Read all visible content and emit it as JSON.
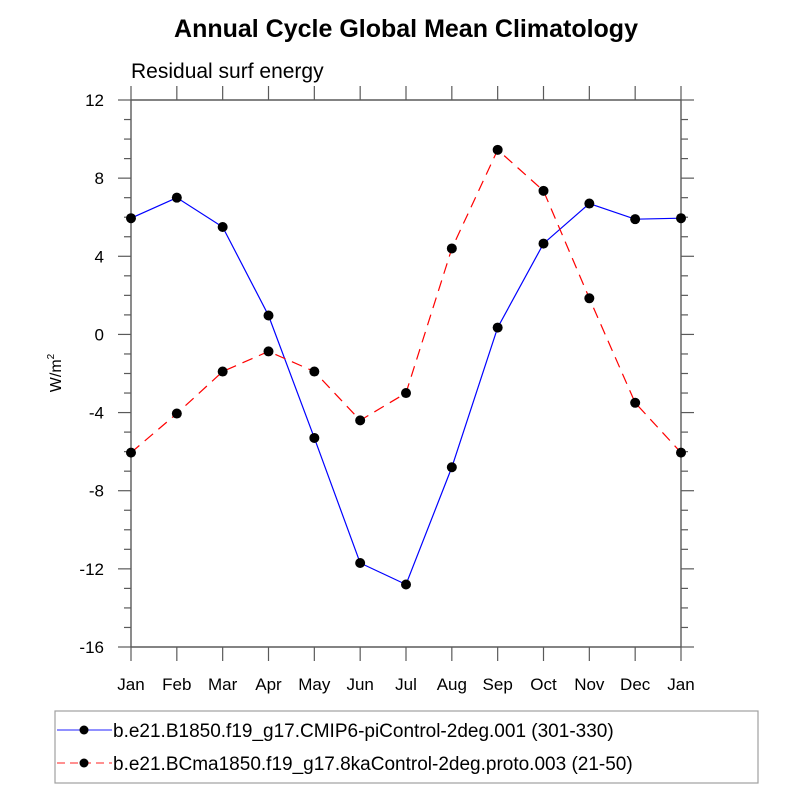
{
  "chart_data": {
    "type": "line",
    "title": "Annual Cycle Global Mean Climatology",
    "subtitle": "Residual surf energy",
    "xlabel": "",
    "ylabel": "W/m",
    "ylabel_superscript": "2",
    "categories": [
      "Jan",
      "Feb",
      "Mar",
      "Apr",
      "May",
      "Jun",
      "Jul",
      "Aug",
      "Sep",
      "Oct",
      "Nov",
      "Dec",
      "Jan"
    ],
    "ylim": [
      -16,
      12
    ],
    "yticks": [
      -16,
      -12,
      -8,
      -4,
      0,
      4,
      8,
      12
    ],
    "ytick_labels": [
      "-16",
      "-12",
      "-8",
      "-4",
      "0",
      "4",
      "8",
      "12"
    ],
    "grid": false,
    "legend_position": "bottom",
    "series": [
      {
        "name": "b.e21.B1850.f19_g17.CMIP6-piControl-2deg.001 (301-330)",
        "color": "#0000ff",
        "dash": "solid",
        "marker": "filled-circle",
        "values": [
          5.95,
          7.0,
          5.5,
          0.97,
          -5.3,
          -11.7,
          -12.8,
          -6.8,
          0.35,
          4.65,
          6.7,
          5.9,
          5.95
        ]
      },
      {
        "name": "b.e21.BCma1850.f19_g17.8kaControl-2deg.proto.003 (21-50)",
        "color": "#ff0000",
        "dash": "dashed",
        "marker": "filled-circle",
        "values": [
          -6.05,
          -4.05,
          -1.9,
          -0.87,
          -1.9,
          -4.4,
          -3.0,
          4.4,
          9.45,
          7.35,
          1.85,
          -3.5,
          -6.05
        ]
      }
    ]
  }
}
